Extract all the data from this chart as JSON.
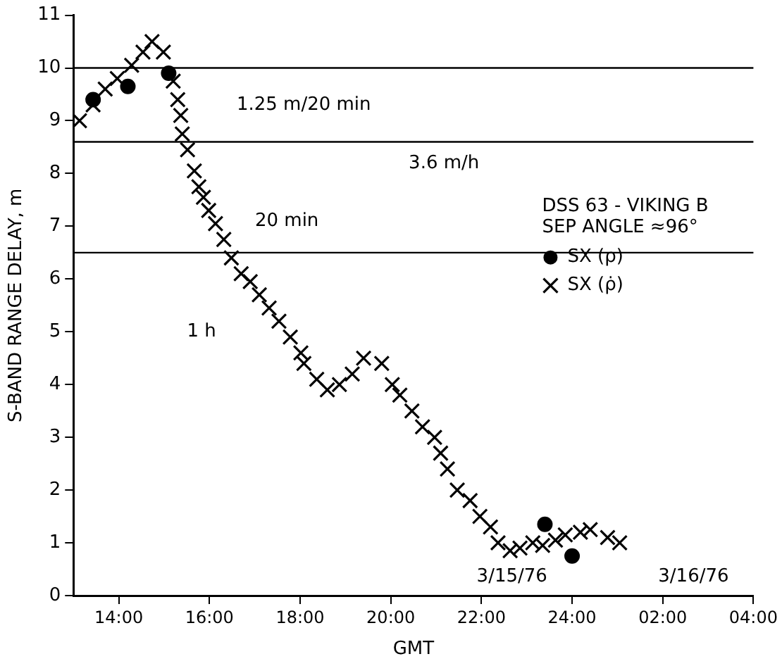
{
  "chart_data": {
    "type": "scatter",
    "xlabel": "GMT",
    "ylabel": "S-BAND RANGE DELAY, m",
    "legend_title": "DSS 63 - VIKING B\nSEP ANGLE ≈96°",
    "legend": "right",
    "xlim": [
      "--03-15T13:00",
      "--03-16T04:00"
    ],
    "ylim": [
      0,
      11
    ],
    "xticks": [
      {
        "value": "--03-15T14:00",
        "label": "14:00"
      },
      {
        "value": "--03-15T16:00",
        "label": "16:00"
      },
      {
        "value": "--03-15T18:00",
        "label": "18:00"
      },
      {
        "value": "--03-15T20:00",
        "label": "20:00"
      },
      {
        "value": "--03-15T22:00",
        "label": "22:00"
      },
      {
        "value": "--03-16T00:00",
        "label": "24:00"
      },
      {
        "value": "--03-16T02:00",
        "label": "02:00"
      },
      {
        "value": "--03-16T04:00",
        "label": "04:00"
      }
    ],
    "yticks": [
      0,
      1,
      2,
      3,
      4,
      5,
      6,
      7,
      8,
      9,
      10,
      11
    ],
    "grid": false,
    "series": [
      {
        "name": "SX (ρ)",
        "color": "#000000",
        "marker": "circle",
        "x": [
          "--03-15T13:26",
          "--03-15T14:12",
          "--03-15T15:06",
          "--03-15T23:24",
          "--03-16T00:00"
        ],
        "values": [
          9.4,
          9.65,
          9.9,
          1.35,
          0.75
        ]
      },
      {
        "name": "SX (ρ̇)",
        "color": "#000000",
        "marker": "cross",
        "x": [
          "--03-15T13:08",
          "--03-15T13:26",
          "--03-15T13:42",
          "--03-15T13:58",
          "--03-15T14:17",
          "--03-15T14:32",
          "--03-15T14:44",
          "--03-15T14:59",
          "--03-15T15:12",
          "--03-15T15:18",
          "--03-15T15:22",
          "--03-15T15:24",
          "--03-15T15:31",
          "--03-15T15:40",
          "--03-15T15:46",
          "--03-15T15:52",
          "--03-15T15:59",
          "--03-15T16:08",
          "--03-15T16:19",
          "--03-15T16:29",
          "--03-15T16:42",
          "--03-15T16:54",
          "--03-15T17:06",
          "--03-15T17:19",
          "--03-15T17:32",
          "--03-15T17:47",
          "--03-15T18:01",
          "--03-15T18:05",
          "--03-15T18:22",
          "--03-15T18:36",
          "--03-15T18:52",
          "--03-15T19:09",
          "--03-15T19:24",
          "--03-15T19:48",
          "--03-15T20:02",
          "--03-15T20:12",
          "--03-15T20:28",
          "--03-15T20:42",
          "--03-15T20:58",
          "--03-15T21:06",
          "--03-15T21:15",
          "--03-15T21:28",
          "--03-15T21:45",
          "--03-15T21:58",
          "--03-15T22:12",
          "--03-15T22:22",
          "--03-15T22:38",
          "--03-15T22:51",
          "--03-15T23:08",
          "--03-15T23:21",
          "--03-15T23:38",
          "--03-15T23:51",
          "--03-16T00:11",
          "--03-16T00:24",
          "--03-16T00:47",
          "--03-16T01:03"
        ],
        "values": [
          9.0,
          9.3,
          9.6,
          9.8,
          10.05,
          10.3,
          10.5,
          10.3,
          9.75,
          9.4,
          9.1,
          8.75,
          8.45,
          8.05,
          7.75,
          7.55,
          7.3,
          7.05,
          6.75,
          6.4,
          6.1,
          5.95,
          5.7,
          5.45,
          5.2,
          4.9,
          4.6,
          4.4,
          4.1,
          3.9,
          4.0,
          4.2,
          4.5,
          4.4,
          4.0,
          3.8,
          3.5,
          3.2,
          3.0,
          2.7,
          2.4,
          2.0,
          1.8,
          1.5,
          1.3,
          1.0,
          0.85,
          0.9,
          1.0,
          0.95,
          1.05,
          1.15,
          1.2,
          1.25,
          1.1,
          1.0
        ]
      }
    ],
    "ref_lines": [
      {
        "axis": "y",
        "value": 10
      },
      {
        "axis": "y",
        "value": 8.6
      },
      {
        "axis": "y",
        "value": 6.5
      }
    ],
    "annotations": [
      "1.25 m/20 min",
      "3.6 m/h",
      "20 min",
      "1 h",
      "3/15/76",
      "3/16/76"
    ]
  }
}
